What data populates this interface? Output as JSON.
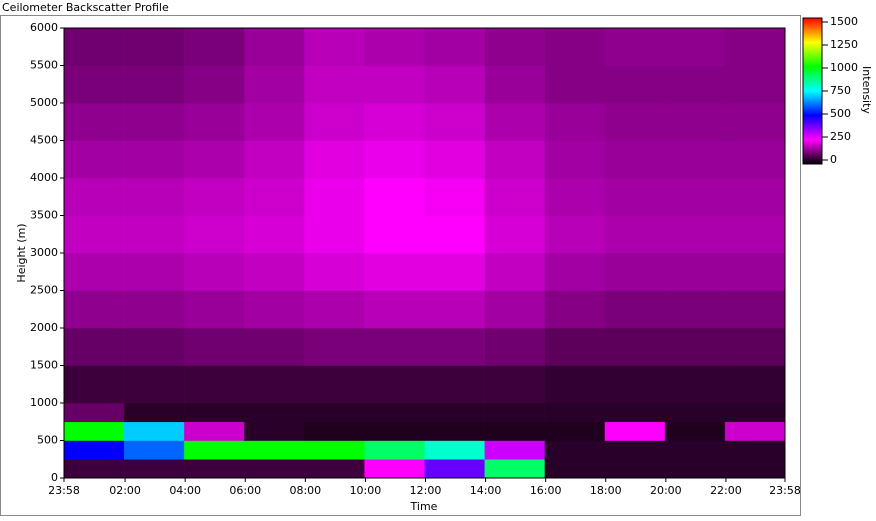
{
  "chart_data": {
    "type": "heatmap",
    "title": "Ceilometer Backscatter Profile",
    "x_label": "Time",
    "y_label": "Height (m)",
    "colorbar_label": "Intensity",
    "xbins": [
      -2,
      118,
      238,
      358,
      478,
      598,
      718,
      838,
      958,
      1078,
      1198,
      1318,
      1438
    ],
    "ybins": [
      0,
      250,
      500,
      750,
      1000,
      1500,
      2000,
      2500,
      3000,
      3500,
      4000,
      4500,
      5000,
      5500,
      6000
    ],
    "z": [
      [
        60,
        60,
        60,
        60,
        60,
        250,
        400,
        900,
        40,
        40,
        40,
        40
      ],
      [
        500,
        600,
        1000,
        1000,
        1000,
        900,
        800,
        300,
        40,
        40,
        40,
        40
      ],
      [
        1000,
        700,
        200,
        40,
        30,
        30,
        30,
        30,
        30,
        250,
        30,
        200
      ],
      [
        100,
        40,
        40,
        40,
        40,
        40,
        40,
        40,
        40,
        40,
        40,
        40
      ],
      [
        60,
        60,
        60,
        60,
        60,
        60,
        60,
        60,
        50,
        50,
        50,
        50
      ],
      [
        100,
        100,
        110,
        110,
        120,
        120,
        120,
        110,
        90,
        90,
        90,
        90
      ],
      [
        140,
        140,
        150,
        160,
        170,
        180,
        180,
        160,
        130,
        120,
        120,
        120
      ],
      [
        170,
        170,
        180,
        190,
        210,
        220,
        220,
        190,
        160,
        150,
        150,
        150
      ],
      [
        190,
        190,
        200,
        210,
        230,
        250,
        250,
        210,
        180,
        170,
        170,
        170
      ],
      [
        180,
        180,
        190,
        200,
        230,
        250,
        240,
        200,
        170,
        160,
        160,
        160
      ],
      [
        160,
        160,
        170,
        190,
        220,
        230,
        220,
        190,
        160,
        150,
        150,
        150
      ],
      [
        140,
        140,
        150,
        170,
        200,
        210,
        200,
        170,
        150,
        140,
        140,
        140
      ],
      [
        120,
        120,
        130,
        160,
        190,
        190,
        180,
        150,
        130,
        130,
        130,
        130
      ],
      [
        110,
        110,
        120,
        150,
        180,
        170,
        160,
        140,
        130,
        140,
        140,
        130
      ]
    ],
    "colormap": [
      "#000000",
      "#ff00ff",
      "#0000ff",
      "#00ffff",
      "#00ff00",
      "#ffff00",
      "#ff0000"
    ],
    "zlim": [
      0,
      1500
    ],
    "zticks": [
      0,
      250,
      500,
      750,
      1000,
      1250,
      1500
    ],
    "xlim": [
      -2,
      1438
    ],
    "xticks": [
      {
        "value": -2,
        "label": "23:58"
      },
      {
        "value": 120,
        "label": "02:00"
      },
      {
        "value": 240,
        "label": "04:00"
      },
      {
        "value": 360,
        "label": "06:00"
      },
      {
        "value": 480,
        "label": "08:00"
      },
      {
        "value": 600,
        "label": "10:00"
      },
      {
        "value": 720,
        "label": "12:00"
      },
      {
        "value": 840,
        "label": "14:00"
      },
      {
        "value": 960,
        "label": "16:00"
      },
      {
        "value": 1080,
        "label": "18:00"
      },
      {
        "value": 1200,
        "label": "20:00"
      },
      {
        "value": 1320,
        "label": "22:00"
      },
      {
        "value": 1438,
        "label": "23:58"
      }
    ],
    "ylim": [
      0,
      6000
    ],
    "yticks": [
      0,
      500,
      1000,
      1500,
      2000,
      2500,
      3000,
      3500,
      4000,
      4500,
      5000,
      5500,
      6000
    ]
  }
}
